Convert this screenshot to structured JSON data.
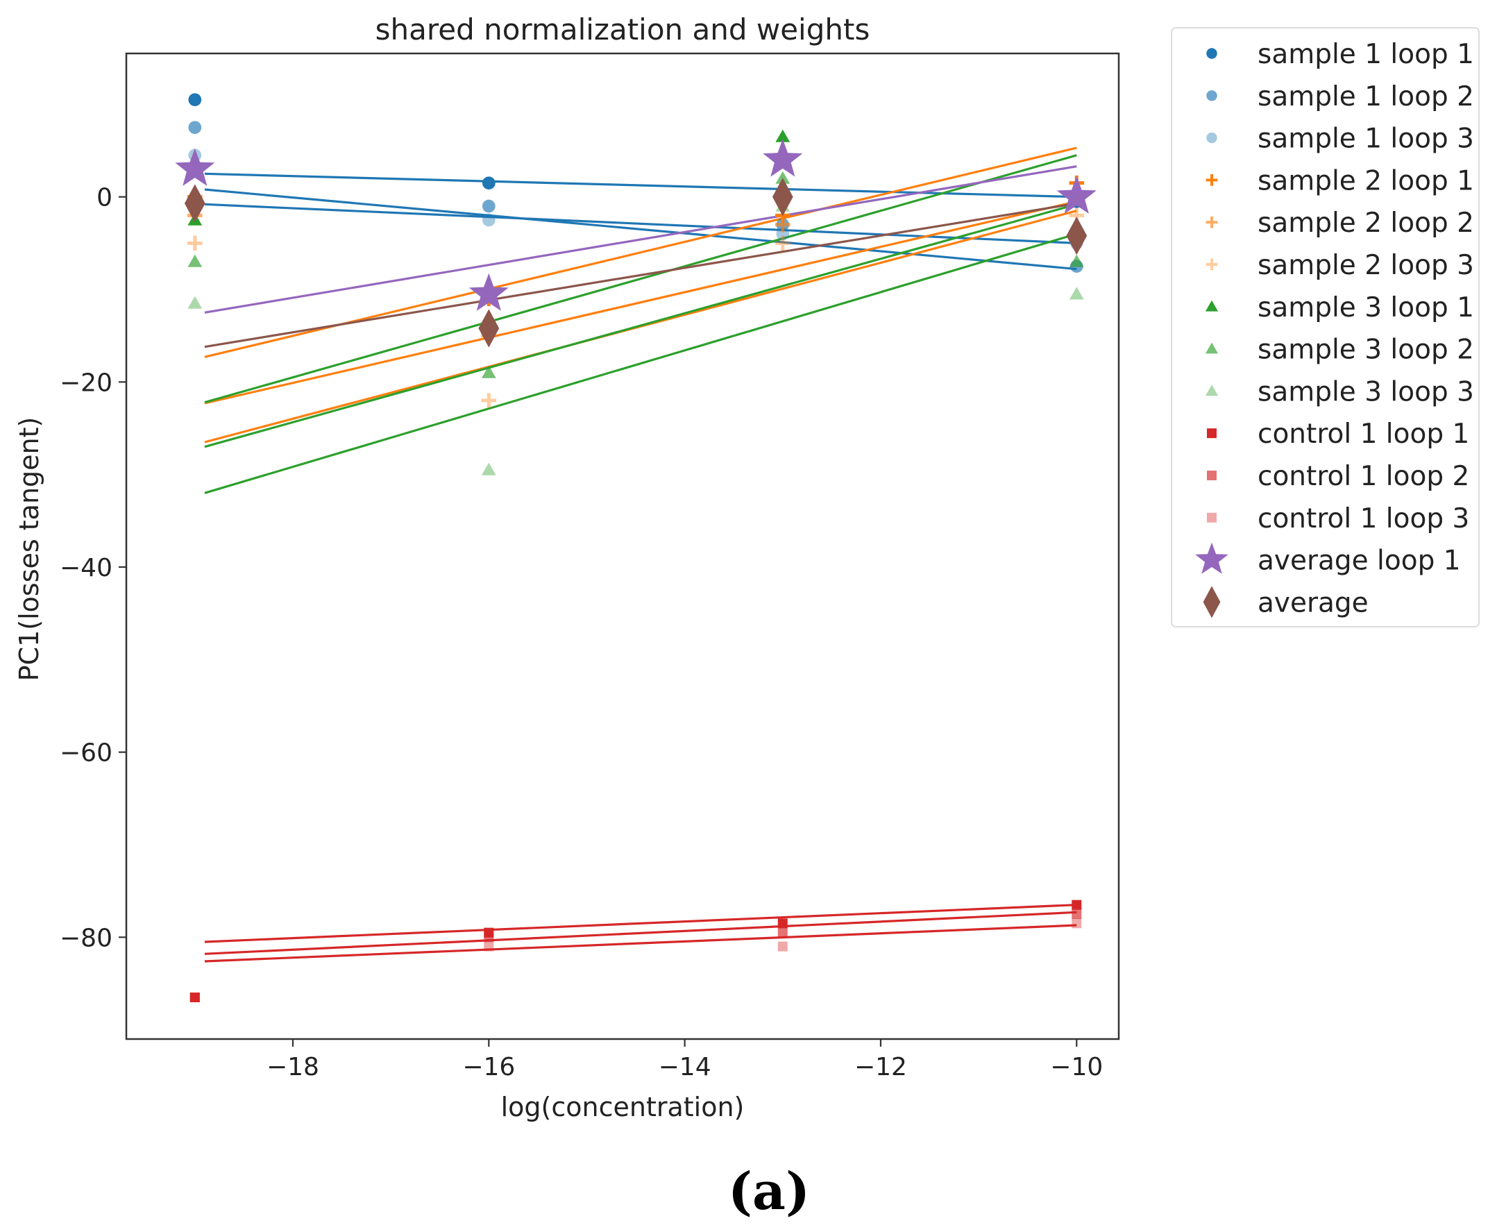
{
  "chart_data": {
    "type": "scatter",
    "title": "shared normalization and weights",
    "xlabel": "log(concentration)",
    "ylabel": "PC1(losses tangent)",
    "xlim": [
      -19.7,
      -9.57
    ],
    "ylim": [
      -91,
      15.5
    ],
    "xticks": [
      -18,
      -16,
      -14,
      -12,
      -10
    ],
    "yticks": [
      0,
      -20,
      -40,
      -60,
      -80
    ],
    "x": [
      -19,
      -16,
      -13,
      -10
    ],
    "legend_position": "outside-right",
    "caption": "(a)",
    "series": [
      {
        "name": "sample 1 loop 1",
        "color": "#1f77b4",
        "marker": "circle",
        "opacity": 1.0,
        "points": [
          10.5,
          1.5,
          0.5,
          -0.5
        ],
        "fit": [
          [
            -18.9,
            2.5
          ],
          [
            -10,
            0
          ]
        ]
      },
      {
        "name": "sample 1 loop 2",
        "color": "#1f77b4",
        "marker": "circle",
        "opacity": 0.65,
        "points": [
          7.5,
          -1,
          -3,
          -7.5
        ],
        "fit": [
          [
            -18.9,
            0.8
          ],
          [
            -10,
            -7.8
          ]
        ]
      },
      {
        "name": "sample 1 loop 3",
        "color": "#1f77b4",
        "marker": "circle",
        "opacity": 0.4,
        "points": [
          4.5,
          -2.5,
          -4,
          -5
        ],
        "fit": [
          [
            -18.9,
            -0.8
          ],
          [
            -10,
            -5
          ]
        ]
      },
      {
        "name": "sample 2 loop 1",
        "color": "#ff7f0e",
        "marker": "plus",
        "opacity": 1.0,
        "points": [
          0,
          -11,
          -2,
          1.5
        ],
        "fit": [
          [
            -18.9,
            -17.3
          ],
          [
            -10,
            5.3
          ]
        ]
      },
      {
        "name": "sample 2 loop 2",
        "color": "#ff7f0e",
        "marker": "plus",
        "opacity": 0.65,
        "points": [
          -2,
          -15,
          -3,
          0.5
        ],
        "fit": [
          [
            -18.9,
            -22.3
          ],
          [
            -10,
            -0.5
          ]
        ]
      },
      {
        "name": "sample 2 loop 3",
        "color": "#ff7f0e",
        "marker": "plus",
        "opacity": 0.4,
        "points": [
          -5,
          -22,
          -5,
          -2
        ],
        "fit": [
          [
            -18.9,
            -26.5
          ],
          [
            -10,
            -1.5
          ]
        ]
      },
      {
        "name": "sample 3 loop 1",
        "color": "#2ca02c",
        "marker": "triangle",
        "opacity": 1.0,
        "points": [
          -2.5,
          -14,
          6.5,
          0
        ],
        "fit": [
          [
            -18.9,
            -22.2
          ],
          [
            -10,
            4.5
          ]
        ]
      },
      {
        "name": "sample 3 loop 2",
        "color": "#2ca02c",
        "marker": "triangle",
        "opacity": 0.65,
        "points": [
          -7,
          -19,
          2,
          -7
        ],
        "fit": [
          [
            -18.9,
            -27
          ],
          [
            -10,
            -0.8
          ]
        ]
      },
      {
        "name": "sample 3 loop 3",
        "color": "#2ca02c",
        "marker": "triangle",
        "opacity": 0.4,
        "points": [
          -11.5,
          -29.5,
          -1,
          -10.5
        ],
        "fit": [
          [
            -18.9,
            -32
          ],
          [
            -10,
            -4
          ]
        ]
      },
      {
        "name": "control 1 loop 1",
        "color": "#d62728",
        "marker": "square",
        "opacity": 1.0,
        "points": [
          -86.5,
          -79.5,
          -78.5,
          -76.5
        ],
        "fit": [
          [
            -18.9,
            -80.5
          ],
          [
            -10,
            -76.5
          ]
        ]
      },
      {
        "name": "control 1 loop 2",
        "color": "#d62728",
        "marker": "square",
        "opacity": 0.65,
        "points": [
          -86.5,
          -80,
          -79.5,
          -77.5
        ],
        "fit": [
          [
            -18.9,
            -81.8
          ],
          [
            -10,
            -77.3
          ]
        ]
      },
      {
        "name": "control 1 loop 3",
        "color": "#d62728",
        "marker": "square",
        "opacity": 0.4,
        "points": [
          -86.5,
          -81,
          -81,
          -78.5
        ],
        "fit": [
          [
            -18.9,
            -82.6
          ],
          [
            -10,
            -78.7
          ]
        ]
      },
      {
        "name": "average loop 1",
        "color": "#9467bd",
        "marker": "star",
        "opacity": 1.0,
        "points": [
          3,
          -10.5,
          4,
          0
        ],
        "fit": [
          [
            -18.9,
            -12.5
          ],
          [
            -10,
            3.3
          ]
        ]
      },
      {
        "name": "average",
        "color": "#8c564b",
        "marker": "diamond",
        "opacity": 1.0,
        "points": [
          -0.7,
          -14.2,
          0,
          -4.2
        ],
        "fit": [
          [
            -18.9,
            -16.2
          ],
          [
            -10,
            -0.7
          ]
        ]
      }
    ]
  }
}
